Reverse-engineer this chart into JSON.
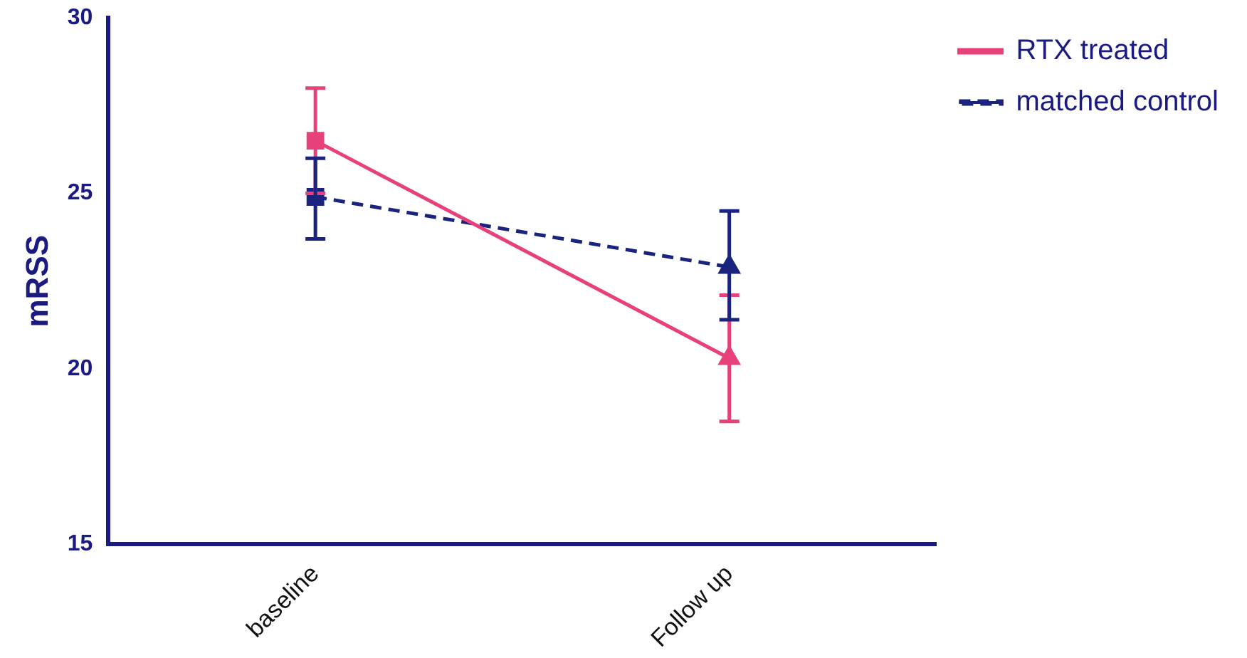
{
  "chart_data": {
    "type": "line",
    "ylabel": "mRSS",
    "categories": [
      "baseline",
      "Follow up"
    ],
    "series": [
      {
        "name": "RTX treated",
        "color": "#e8407a",
        "values": [
          26.5,
          20.3
        ],
        "errors": [
          [
            25.0,
            28.0
          ],
          [
            18.5,
            22.1
          ]
        ],
        "marker": [
          "square",
          "triangle"
        ],
        "line_style": "solid"
      },
      {
        "name": "matched control",
        "color": "#1a237e",
        "values": [
          24.9,
          22.9
        ],
        "errors": [
          [
            23.7,
            26.0
          ],
          [
            21.4,
            24.5
          ]
        ],
        "marker": [
          "square",
          "triangle"
        ],
        "line_style": "dashed"
      }
    ],
    "ylim": [
      15,
      30
    ],
    "yticks": [
      15,
      20,
      25,
      30
    ],
    "grid": false,
    "legend": "top right"
  }
}
